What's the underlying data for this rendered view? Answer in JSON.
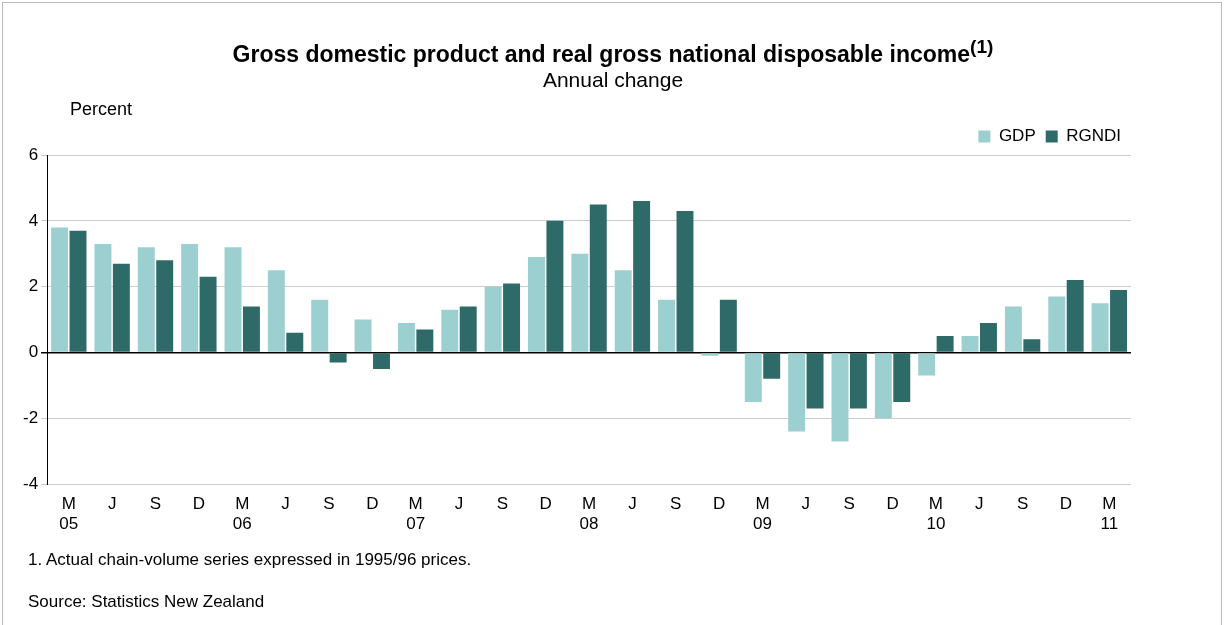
{
  "chart_data": {
    "type": "bar",
    "title": "Gross domestic product and real gross national disposable income$^{(1)}$",
    "subtitle": "Annual change",
    "ylabel": "Percent",
    "categories": [
      "M\n05",
      "J",
      "S",
      "D",
      "M\n06",
      "J",
      "S",
      "D",
      "M\n07",
      "J",
      "S",
      "D",
      "M\n08",
      "J",
      "S",
      "D",
      "M\n09",
      "J",
      "S",
      "D",
      "M\n10",
      "J",
      "S",
      "D",
      "M\n11"
    ],
    "series": [
      {
        "name": "GDP",
        "color": "#9ccfcf",
        "values": [
          3.8,
          3.3,
          3.2,
          3.3,
          3.2,
          2.5,
          1.6,
          1.0,
          0.9,
          1.3,
          2.0,
          2.9,
          3.0,
          2.5,
          1.6,
          -0.1,
          -1.5,
          -2.4,
          -2.7,
          -2.0,
          -0.7,
          0.5,
          1.4,
          1.7,
          1.5
        ]
      },
      {
        "name": "RGNDI",
        "color": "#2e6b68",
        "values": [
          3.7,
          2.7,
          2.8,
          2.3,
          1.4,
          0.6,
          -0.3,
          -0.5,
          0.7,
          1.4,
          2.1,
          4.0,
          4.5,
          4.6,
          4.3,
          1.6,
          -0.8,
          -1.7,
          -1.7,
          -1.5,
          0.5,
          0.9,
          0.4,
          2.2,
          1.9
        ]
      }
    ],
    "ylim": [
      -4,
      6
    ],
    "yticks": [
      -4,
      -2,
      0,
      2,
      4,
      6
    ],
    "grid": "y",
    "legend": "top right",
    "annotations": [
      "1. Actual chain-volume series expressed in 1995/96 prices.",
      "Source: Statistics New Zealand"
    ]
  }
}
